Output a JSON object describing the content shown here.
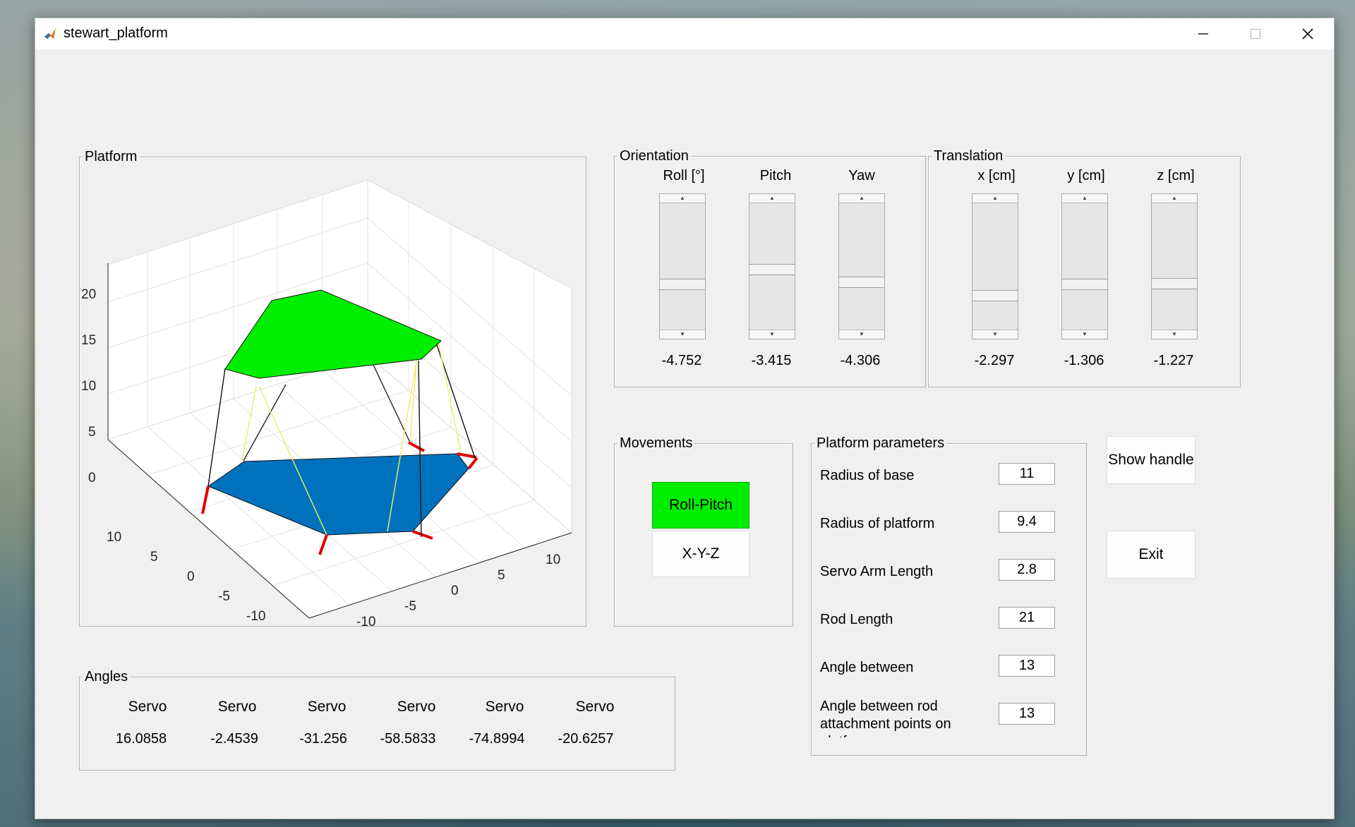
{
  "window": {
    "title": "stewart_platform"
  },
  "platform_panel": {
    "title": "Platform",
    "z_ticks": [
      "20",
      "15",
      "10",
      "5",
      "0"
    ],
    "y_ticks": [
      "10",
      "5",
      "0",
      "-5",
      "-10"
    ],
    "x_ticks": [
      "10",
      "5",
      "0",
      "-5",
      "-10"
    ]
  },
  "orientation": {
    "title": "Orientation",
    "columns": [
      {
        "label": "Roll [°]",
        "value": "-4.752",
        "position": 0.35
      },
      {
        "label": "Pitch",
        "value": "-3.415",
        "position": 0.45
      },
      {
        "label": "Yaw",
        "value": "-4.306",
        "position": 0.37
      }
    ]
  },
  "translation": {
    "title": "Translation",
    "columns": [
      {
        "label": "x [cm]",
        "value": "-2.297",
        "position": 0.22
      },
      {
        "label": "y [cm]",
        "value": "-1.306",
        "position": 0.37
      },
      {
        "label": "z [cm]",
        "value": "-1.227",
        "position": 0.38
      }
    ]
  },
  "movements": {
    "title": "Movements",
    "roll_pitch": "Roll-Pitch",
    "xyz": "X-Y-Z"
  },
  "platform_parameters": {
    "title": "Platform parameters",
    "items": [
      {
        "label": "Radius of base",
        "value": "11"
      },
      {
        "label": "Radius of platform",
        "value": "9.4"
      },
      {
        "label": "Servo Arm Length",
        "value": "2.8"
      },
      {
        "label": "Rod Length",
        "value": "21"
      },
      {
        "label": "Angle between",
        "value": "13"
      },
      {
        "label": "Angle between rod attachment points on platform",
        "value": "13"
      }
    ]
  },
  "buttons": {
    "show_handle": "Show handle",
    "exit": "Exit"
  },
  "angles": {
    "title": "Angles",
    "headers": [
      "Servo",
      "Servo",
      "Servo",
      "Servo",
      "Servo",
      "Servo"
    ],
    "values": [
      "16.0858",
      "-2.4539",
      "-31.256",
      "-58.5833",
      "-74.8994",
      "-20.6257"
    ]
  },
  "colors": {
    "platform_top": "#00ee00",
    "platform_base": "#0072bd",
    "servo_arm": "#e00000",
    "rod_light": "#ffff66"
  }
}
